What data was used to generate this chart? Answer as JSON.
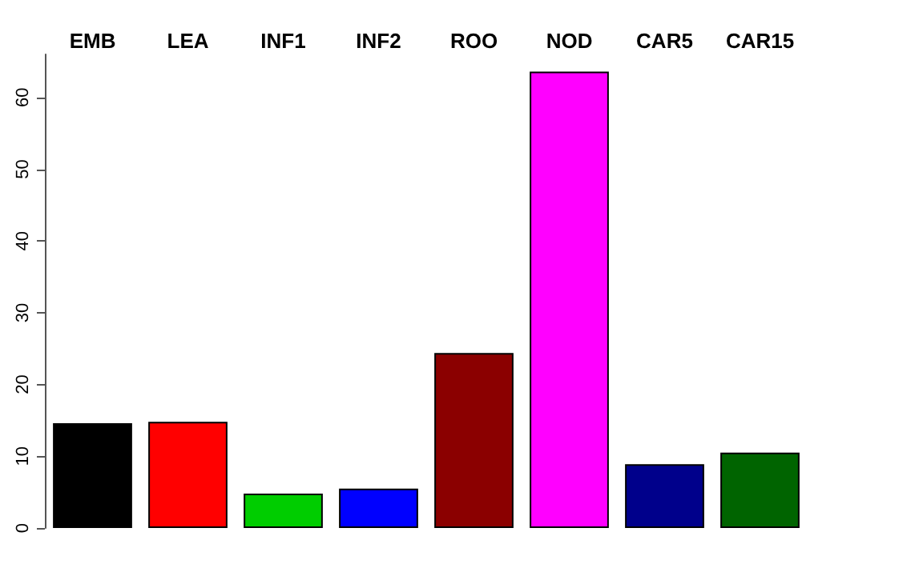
{
  "chart_data": {
    "type": "bar",
    "categories": [
      "EMB",
      "LEA",
      "INF1",
      "INF2",
      "ROO",
      "NOD",
      "CAR5",
      "CAR15"
    ],
    "values": [
      14.6,
      14.8,
      4.8,
      5.5,
      24.4,
      63.6,
      8.9,
      10.5
    ],
    "colors": [
      "#000000",
      "#ff0000",
      "#00cd00",
      "#0000ff",
      "#8b0000",
      "#ff00ff",
      "#00008b",
      "#006400"
    ],
    "ylim": [
      0,
      66
    ],
    "yticks": [
      0,
      10,
      20,
      30,
      40,
      50,
      60
    ]
  }
}
